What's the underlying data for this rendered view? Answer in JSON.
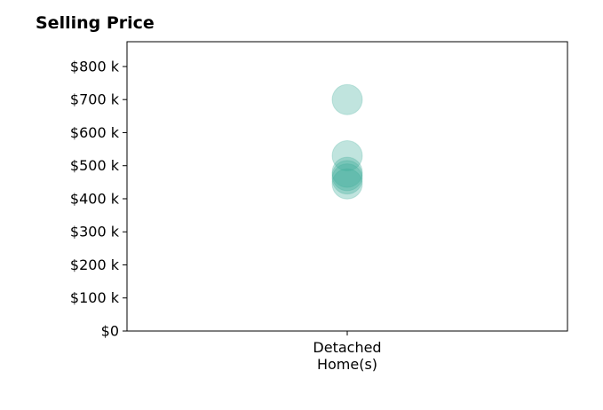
{
  "chart_data": {
    "type": "scatter",
    "title": "Selling Price",
    "xlabel": "",
    "ylabel": "",
    "categories": [
      "Detached\nHome(s)"
    ],
    "y_ticks": [
      "$0",
      "$100 k",
      "$200 k",
      "$300 k",
      "$400 k",
      "$500 k",
      "$600 k",
      "$700 k",
      "$800 k"
    ],
    "y_tick_values": [
      0,
      100000,
      200000,
      300000,
      400000,
      500000,
      600000,
      700000,
      800000
    ],
    "ylim": [
      0,
      875000
    ],
    "grid": false,
    "series": [
      {
        "category": "Detached\nHome(s)",
        "values": [
          700000,
          530000,
          480000,
          470000,
          460000,
          445000
        ]
      }
    ],
    "colors": {
      "marker": "#3aaa99",
      "axes": "#000000"
    }
  }
}
